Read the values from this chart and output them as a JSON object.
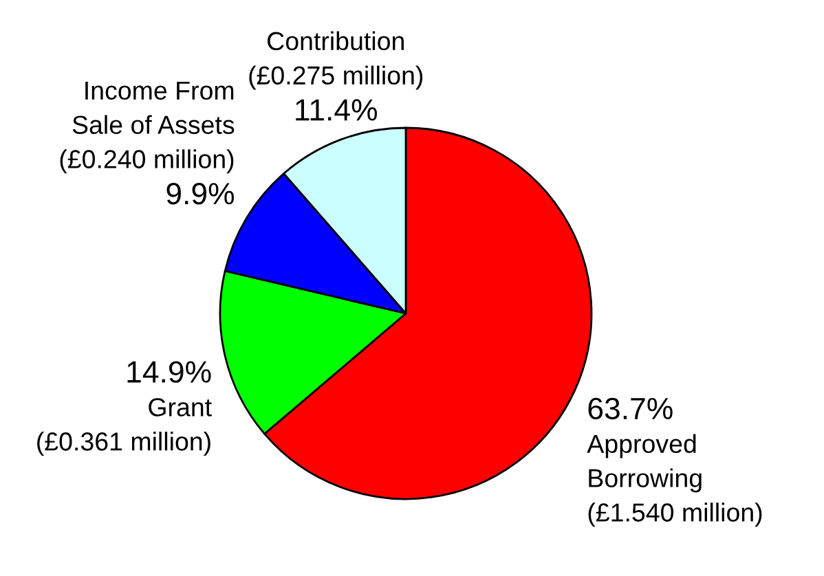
{
  "chart_data": {
    "type": "pie",
    "categories": [
      "Approved\nBorrowing\n(£1.540 million)",
      "Grant\n(£0.361 million)",
      "Income From\nSale of Assets\n(£0.240 million)",
      "Contribution\n(£0.275 million)"
    ],
    "values": [
      63.7,
      14.9,
      9.9,
      11.4
    ],
    "colors": [
      "#ff0000",
      "#00ff00",
      "#0000ff",
      "#ccffff"
    ],
    "value_labels": [
      "63.7%",
      "14.9%",
      "9.9%",
      "11.4%"
    ]
  }
}
